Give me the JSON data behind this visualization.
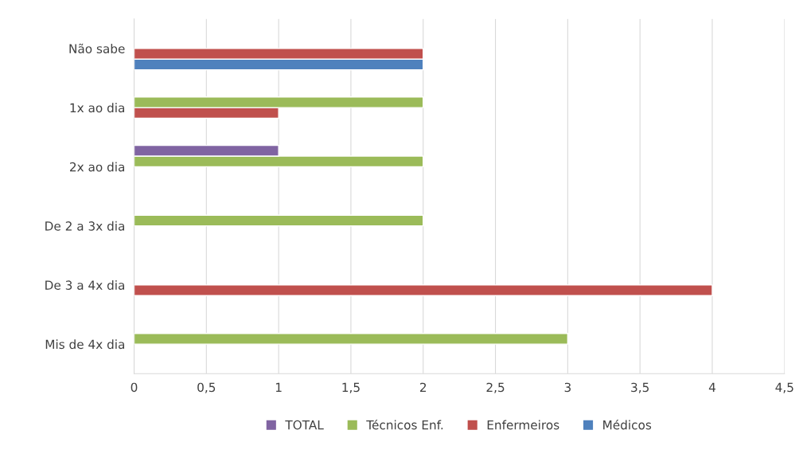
{
  "chart_data": {
    "type": "bar",
    "orientation": "horizontal",
    "categories": [
      "Não sabe",
      "1x ao dia",
      "2x ao dia",
      "De 2 a 3x dia",
      "De 3 a 4x dia",
      "Mis de 4x dia"
    ],
    "series": [
      {
        "name": "Médicos",
        "color": "#4f81bd",
        "values": [
          2,
          null,
          null,
          null,
          null,
          null
        ]
      },
      {
        "name": "Enfermeiros",
        "color": "#c0504d",
        "values": [
          2,
          1,
          null,
          null,
          4,
          null
        ]
      },
      {
        "name": "Técnicos Enf.",
        "color": "#9bbb59",
        "values": [
          null,
          2,
          2,
          2,
          null,
          3
        ]
      },
      {
        "name": "TOTAL",
        "color": "#8064a2",
        "values": [
          null,
          null,
          1,
          null,
          null,
          null
        ]
      }
    ],
    "xlim": [
      0,
      4.5
    ],
    "xticks": [
      0,
      {
        "value": 0.5,
        "label": "0,5"
      },
      1,
      {
        "value": 1.5,
        "label": "1,5"
      },
      2,
      {
        "value": 2.5,
        "label": "2,5"
      },
      3,
      {
        "value": 3.5,
        "label": "3,5"
      },
      4,
      {
        "value": 4.5,
        "label": "4,5"
      }
    ],
    "grid": "x",
    "legend": "bottom"
  }
}
